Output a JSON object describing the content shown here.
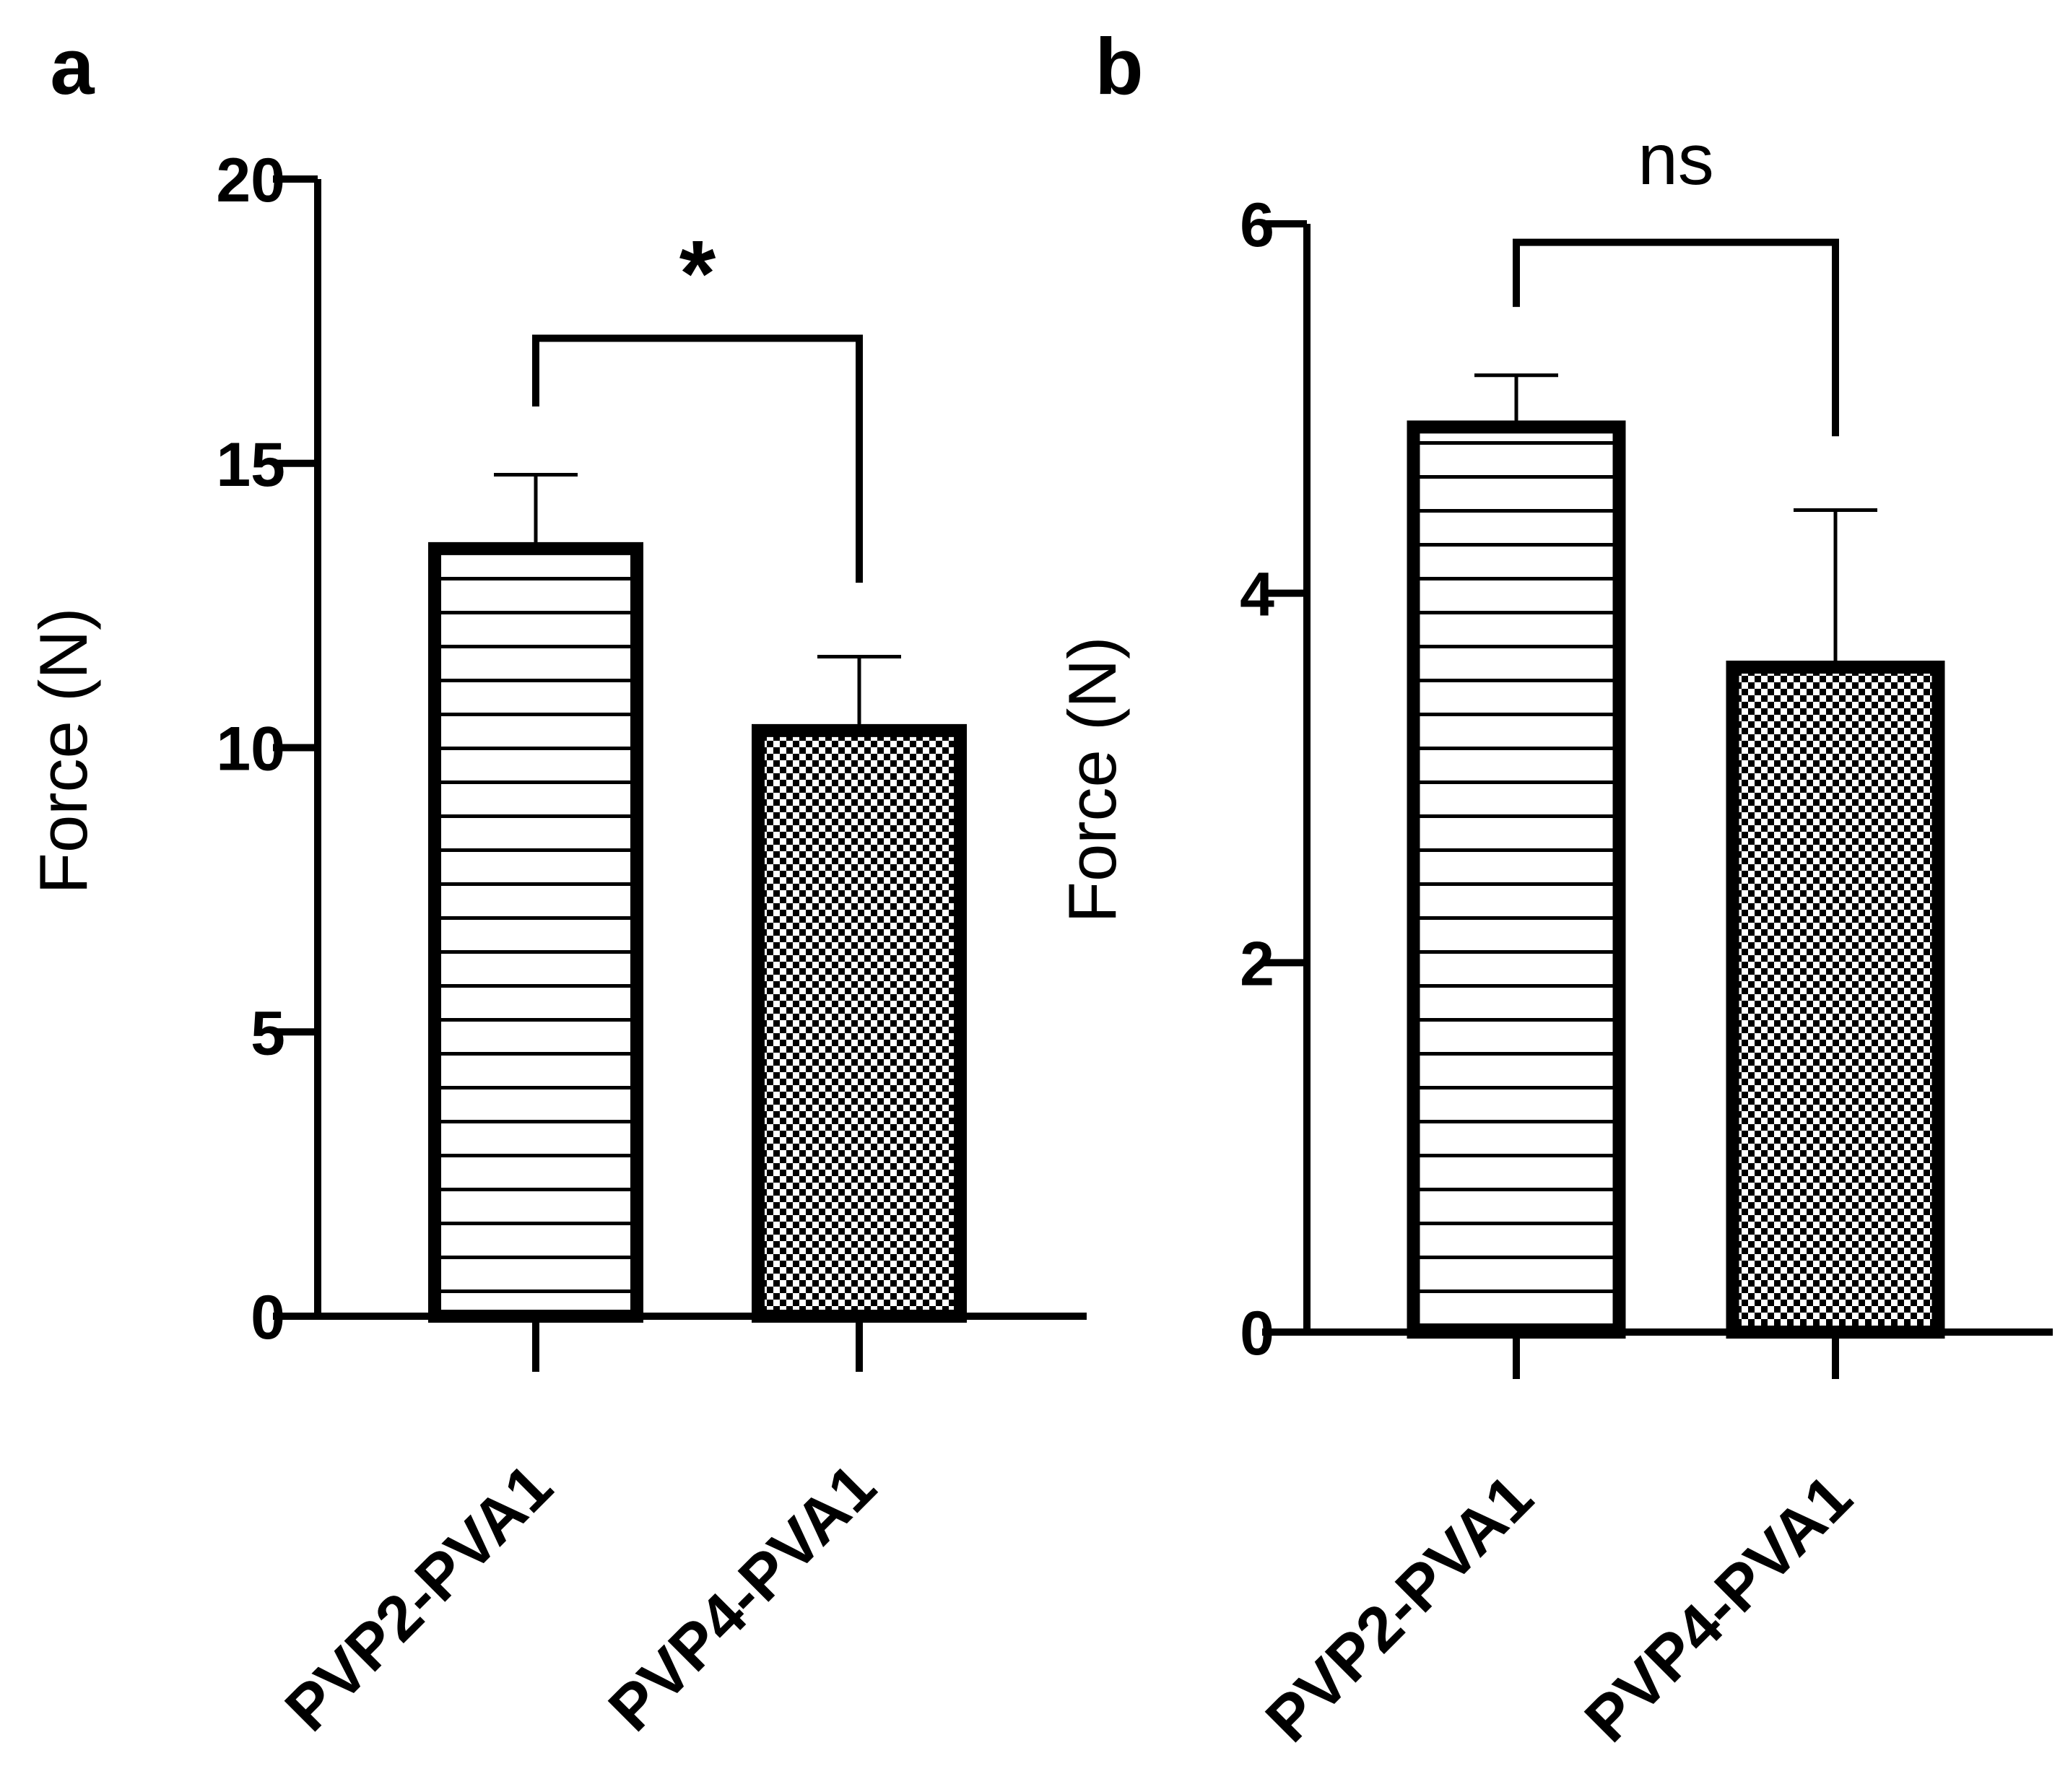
{
  "chart_data": [
    {
      "panel": "a",
      "type": "bar",
      "categories": [
        "PVP2-PVA1",
        "PVP4-PVA1"
      ],
      "values": [
        13.5,
        10.3
      ],
      "error": [
        1.3,
        1.3
      ],
      "patterns": [
        "horizontal-lines",
        "checkerboard"
      ],
      "ylabel": "Force (N)",
      "xlabel": "",
      "ylim": [
        0,
        20
      ],
      "yticks": [
        0,
        5,
        10,
        15,
        20
      ],
      "significance": {
        "label": "*",
        "between": [
          0,
          1
        ],
        "left_y": 16.0,
        "right_y": 12.9,
        "top_y": 17.2
      }
    },
    {
      "panel": "b",
      "type": "bar",
      "categories": [
        "PVP2-PVA1",
        "PVP4-PVA1"
      ],
      "values": [
        4.9,
        3.6
      ],
      "error": [
        0.28,
        0.85
      ],
      "patterns": [
        "horizontal-lines",
        "checkerboard"
      ],
      "ylabel": "Force (N)",
      "xlabel": "",
      "ylim": [
        0,
        6
      ],
      "yticks": [
        0,
        2,
        4,
        6
      ],
      "significance": {
        "label": "ns",
        "between": [
          0,
          1
        ],
        "left_y": 5.55,
        "right_y": 4.85,
        "top_y": 5.9
      }
    }
  ]
}
